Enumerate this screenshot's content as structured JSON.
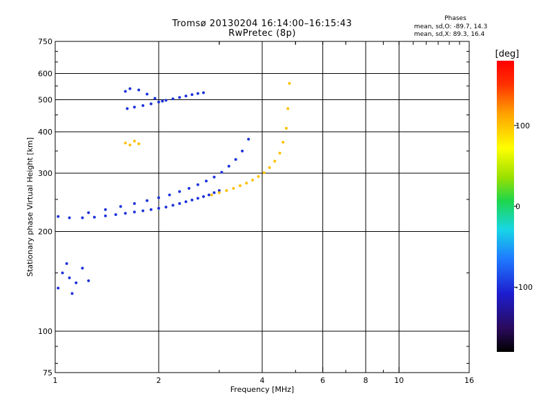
{
  "header": {
    "title": "Tromsø 20130204 16:14:00–16:15:43",
    "subtitle": "RwPretec (8p)",
    "stats_title": "Phases",
    "stats_o": "mean, sd,O: -89.7, 14.3",
    "stats_x": "mean, sd,X: 89.3, 16.4"
  },
  "colorbar": {
    "label": "[deg]",
    "range": [
      -180,
      180
    ],
    "ticks": [
      {
        "v": 100,
        "label": "100"
      },
      {
        "v": 0,
        "label": "0"
      },
      {
        "v": -100,
        "label": "-100"
      }
    ]
  },
  "chart_data": {
    "type": "scatter",
    "xlabel": "Frequency [MHz]",
    "ylabel": "Stationary phase Virtual Height [km]",
    "xscale": "log",
    "yscale": "log",
    "xlim": [
      1,
      16
    ],
    "ylim": [
      75,
      750
    ],
    "x_ticks": [
      1,
      2,
      4,
      6,
      8,
      10,
      16
    ],
    "x_minor_ticks": [
      3,
      5,
      7,
      9
    ],
    "y_ticks": [
      75,
      100,
      200,
      300,
      400,
      500,
      600,
      750
    ],
    "grid": true,
    "color_encoding": "phase [deg]",
    "series": [
      {
        "x": [
          1.02,
          1.1,
          1.2,
          1.3,
          1.4,
          1.5,
          1.6,
          1.7,
          1.8,
          1.9,
          2.0,
          2.1,
          2.2,
          2.3,
          2.4,
          2.5,
          2.6,
          2.7,
          2.8,
          2.9,
          3.0
        ],
        "y": [
          222,
          220,
          220,
          221,
          223,
          225,
          227,
          229,
          231,
          233,
          235,
          237,
          240,
          243,
          246,
          249,
          252,
          255,
          258,
          262,
          266
        ],
        "phase": -100
      },
      {
        "x": [
          1.25,
          1.4,
          1.55,
          1.7,
          1.85,
          2.0,
          2.15,
          2.3,
          2.45,
          2.6,
          2.75,
          2.9,
          3.05,
          3.2,
          3.35,
          3.5,
          3.65
        ],
        "y": [
          228,
          233,
          238,
          243,
          248,
          253,
          258,
          264,
          270,
          277,
          284,
          292,
          302,
          315,
          330,
          350,
          380
        ],
        "phase": -100
      },
      {
        "x": [
          2.85,
          3.0,
          3.15,
          3.3,
          3.45,
          3.6,
          3.75,
          3.9,
          4.05,
          4.2,
          4.35,
          4.5,
          4.6,
          4.7,
          4.75,
          4.8
        ],
        "y": [
          258,
          262,
          266,
          270,
          275,
          280,
          286,
          293,
          301,
          312,
          326,
          345,
          372,
          410,
          470,
          560
        ],
        "phase": 100
      },
      {
        "x": [
          1.62,
          1.7,
          1.8,
          1.9,
          2.0,
          2.1,
          2.2,
          2.3,
          2.4,
          2.5,
          2.6,
          2.7
        ],
        "y": [
          470,
          475,
          480,
          486,
          492,
          498,
          503,
          508,
          513,
          518,
          522,
          525
        ],
        "phase": -100
      },
      {
        "x": [
          1.6,
          1.65,
          1.75,
          1.85,
          1.95,
          2.05
        ],
        "y": [
          530,
          540,
          535,
          520,
          505,
          495
        ],
        "phase": -100
      },
      {
        "x": [
          1.02,
          1.05,
          1.08,
          1.1,
          1.12,
          1.15,
          1.2,
          1.25
        ],
        "y": [
          135,
          150,
          160,
          145,
          130,
          140,
          155,
          142
        ],
        "phase": -100
      },
      {
        "x": [
          1.6,
          1.65,
          1.7,
          1.75
        ],
        "y": [
          370,
          365,
          375,
          368
        ],
        "phase": 100
      }
    ]
  }
}
